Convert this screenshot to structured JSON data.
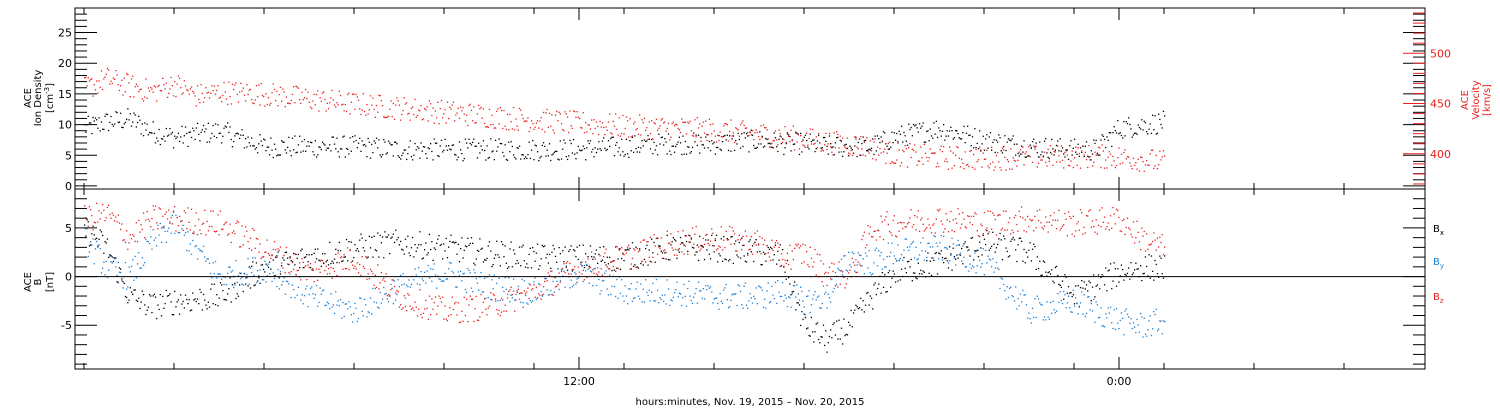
{
  "chart_data": [
    {
      "type": "scatter",
      "panel": "top",
      "left_axis": {
        "label": "ACE",
        "label_line2": "Ion Density",
        "unit_base": "[cm",
        "unit_sup": "-3",
        "unit_end": "]",
        "ylim": [
          -0.5,
          29
        ],
        "ticks": [
          0,
          5,
          10,
          15,
          20,
          25
        ],
        "tick_labels": [
          "0",
          "5",
          "10",
          "15",
          "20",
          "25"
        ]
      },
      "right_axis": {
        "label": "ACE",
        "label_line2": "Velocity",
        "unit": "[km/s]",
        "ylim": [
          365,
          545
        ],
        "ticks": [
          400,
          450,
          500
        ],
        "tick_labels": [
          "400",
          "450",
          "500"
        ],
        "color": "#e8211f"
      },
      "xlim_hours": [
        0.8,
        30.8
      ],
      "series": [
        {
          "id": "density",
          "axis": "left",
          "color": "#000000",
          "x": [
            1.0,
            1.5,
            2.0,
            2.5,
            3.0,
            3.5,
            4.0,
            5.0,
            6.0,
            7.0,
            8.0,
            9.0,
            10.0,
            11.0,
            12.0,
            13.0,
            14.0,
            15.0,
            16.0,
            16.5,
            17.0,
            17.5,
            18.0,
            18.5,
            19.0,
            20.0,
            21.0,
            22.0,
            23.0,
            23.5,
            24.0,
            24.5,
            25.0
          ],
          "y": [
            9.5,
            10.5,
            11.0,
            9.0,
            8.0,
            8.5,
            9.0,
            6.5,
            6.5,
            6.5,
            6.0,
            6.0,
            6.0,
            6.0,
            6.0,
            6.5,
            7.0,
            7.0,
            7.5,
            7.0,
            7.0,
            6.5,
            6.5,
            6.5,
            8.0,
            9.5,
            7.5,
            6.5,
            6.0,
            6.0,
            9.5,
            10.0,
            10.5
          ],
          "spread": 1.8
        },
        {
          "id": "velocity",
          "axis": "right",
          "color": "#e8211f",
          "x": [
            1.0,
            1.5,
            2.0,
            2.5,
            3.0,
            3.5,
            4.0,
            5.0,
            6.0,
            7.0,
            8.0,
            9.0,
            10.0,
            11.0,
            12.0,
            13.0,
            14.0,
            15.0,
            16.0,
            16.5,
            17.0,
            17.5,
            18.0,
            18.5,
            19.0,
            20.0,
            21.0,
            22.0,
            23.0,
            23.5,
            24.0,
            24.5,
            25.0
          ],
          "y": [
            465,
            475,
            468,
            462,
            470,
            458,
            462,
            460,
            455,
            450,
            446,
            442,
            438,
            434,
            431,
            428,
            426,
            424,
            420,
            418,
            415,
            412,
            410,
            407,
            400,
            397,
            396,
            397,
            398,
            398,
            397,
            395,
            392
          ],
          "spread": 12
        }
      ]
    },
    {
      "type": "scatter",
      "panel": "bottom",
      "left_axis": {
        "label": "ACE",
        "label_line2": "B",
        "unit": "[nT]",
        "ylim": [
          -9.5,
          9
        ],
        "ticks": [
          -5,
          0,
          5
        ],
        "tick_labels": [
          "-5",
          "0",
          "5"
        ]
      },
      "xlim_hours": [
        0.8,
        30.8
      ],
      "zero_line": true,
      "series": [
        {
          "id": "bx",
          "name_base": "B",
          "name_sub": "x",
          "color": "#000000",
          "x": [
            1.0,
            1.5,
            2.0,
            2.5,
            3.0,
            4.0,
            5.0,
            6.0,
            7.0,
            8.0,
            9.0,
            10.0,
            11.0,
            12.0,
            13.0,
            14.0,
            15.0,
            16.0,
            16.5,
            17.0,
            17.5,
            18.0,
            18.5,
            19.0,
            20.0,
            21.0,
            22.0,
            23.0,
            24.0,
            24.5,
            25.0
          ],
          "y": [
            5.0,
            3.0,
            -2.0,
            -3.0,
            -2.5,
            -2.0,
            1.0,
            2.0,
            3.0,
            3.5,
            3.0,
            2.5,
            2.0,
            2.0,
            2.0,
            3.0,
            3.0,
            2.5,
            2.0,
            -5.0,
            -6.5,
            -5.0,
            -2.0,
            0.5,
            1.5,
            3.5,
            2.5,
            -2.0,
            0.5,
            1.0,
            1.0
          ],
          "spread": 1.4
        },
        {
          "id": "by",
          "name_base": "B",
          "name_sub": "y",
          "color": "#1b7fd6",
          "x": [
            1.0,
            1.5,
            2.0,
            2.5,
            3.0,
            4.0,
            5.0,
            6.0,
            7.0,
            8.0,
            9.0,
            10.0,
            11.0,
            12.0,
            13.0,
            14.0,
            15.0,
            16.0,
            16.5,
            17.0,
            17.5,
            18.0,
            18.5,
            19.0,
            20.0,
            21.0,
            22.0,
            23.0,
            24.0,
            24.5,
            25.0
          ],
          "y": [
            4.0,
            1.0,
            0.0,
            3.5,
            5.5,
            0.0,
            1.0,
            -2.0,
            -3.5,
            -1.0,
            0.5,
            -1.0,
            -1.5,
            0.5,
            -1.5,
            -1.5,
            -2.0,
            -2.0,
            -1.5,
            -2.5,
            -2.0,
            2.0,
            1.5,
            2.5,
            3.0,
            1.5,
            -3.5,
            -2.5,
            -4.5,
            -5.0,
            -4.5
          ],
          "spread": 1.4
        },
        {
          "id": "bz",
          "name_base": "B",
          "name_sub": "z",
          "color": "#e8211f",
          "x": [
            1.0,
            1.5,
            2.0,
            2.5,
            3.0,
            4.0,
            5.0,
            6.0,
            7.0,
            8.0,
            9.0,
            10.0,
            11.0,
            12.0,
            13.0,
            14.0,
            15.0,
            16.0,
            16.5,
            17.0,
            17.5,
            18.0,
            18.5,
            19.0,
            20.0,
            21.0,
            22.0,
            23.0,
            24.0,
            24.5,
            25.0
          ],
          "y": [
            6.0,
            6.5,
            4.0,
            6.0,
            6.0,
            5.5,
            3.0,
            0.5,
            2.0,
            -2.0,
            -3.5,
            -3.0,
            -1.5,
            1.0,
            2.0,
            3.5,
            4.0,
            3.5,
            2.0,
            2.5,
            0.5,
            0.0,
            5.0,
            5.5,
            6.0,
            5.5,
            6.0,
            5.5,
            6.0,
            4.0,
            3.0
          ],
          "spread": 1.4
        }
      ]
    }
  ],
  "x_axis": {
    "major_ticks_hours": [
      12,
      24
    ],
    "major_labels": [
      "12:00",
      "0:00"
    ],
    "minor_ticks_hours": [
      1,
      3,
      5,
      7,
      9,
      11,
      13,
      15,
      17,
      19,
      21,
      23,
      25,
      27,
      29
    ],
    "xlabel": "hours:minutes, Nov. 19, 2015 – Nov. 20, 2015"
  }
}
